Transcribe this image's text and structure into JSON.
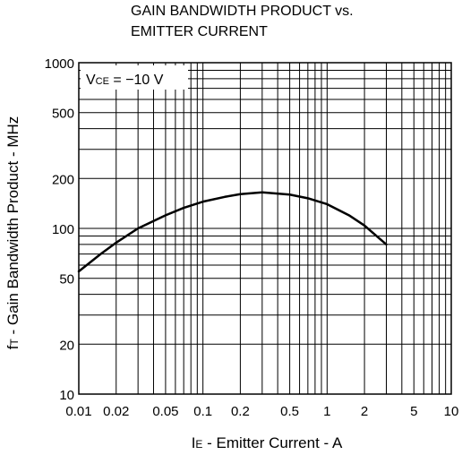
{
  "chart_data": {
    "type": "line",
    "title": [
      "GAIN BANDWIDTH PRODUCT vs.",
      "EMITTER CURRENT"
    ],
    "xlabel": {
      "main": "I",
      "sub": "E",
      "rest": " - Emitter Current - A"
    },
    "ylabel": {
      "main": "f",
      "sub": "T",
      "rest": " - Gain Bandwidth Product - MHz"
    },
    "x_scale": "log",
    "y_scale": "log",
    "xlim": [
      0.01,
      10
    ],
    "ylim": [
      10,
      1000
    ],
    "grid": true,
    "x_ticks": [
      {
        "value": 0.01,
        "label": "0.01"
      },
      {
        "value": 0.02,
        "label": "0.02"
      },
      {
        "value": 0.05,
        "label": "0.05"
      },
      {
        "value": 0.1,
        "label": "0.1"
      },
      {
        "value": 0.2,
        "label": "0.2"
      },
      {
        "value": 0.5,
        "label": "0.5"
      },
      {
        "value": 1,
        "label": "1"
      },
      {
        "value": 2,
        "label": "2"
      },
      {
        "value": 5,
        "label": "5"
      },
      {
        "value": 10,
        "label": "10"
      }
    ],
    "y_ticks": [
      {
        "value": 10,
        "label": "10"
      },
      {
        "value": 20,
        "label": "20"
      },
      {
        "value": 50,
        "label": "50"
      },
      {
        "value": 100,
        "label": "100"
      },
      {
        "value": 200,
        "label": "200"
      },
      {
        "value": 500,
        "label": "500"
      },
      {
        "value": 1000,
        "label": "1000"
      }
    ],
    "annotation": {
      "main": "V",
      "sub": "CE",
      "rest": " = −10 V"
    },
    "series": [
      {
        "x": [
          0.01,
          0.015,
          0.02,
          0.03,
          0.05,
          0.07,
          0.1,
          0.15,
          0.2,
          0.3,
          0.5,
          0.7,
          1.0,
          1.5,
          2.0,
          3.0
        ],
        "y": [
          55,
          70,
          82,
          100,
          120,
          133,
          145,
          155,
          161,
          165,
          160,
          152,
          140,
          120,
          104,
          80
        ]
      }
    ],
    "colors": {
      "line": "#000000",
      "grid": "#000000",
      "background": "#ffffff"
    }
  }
}
